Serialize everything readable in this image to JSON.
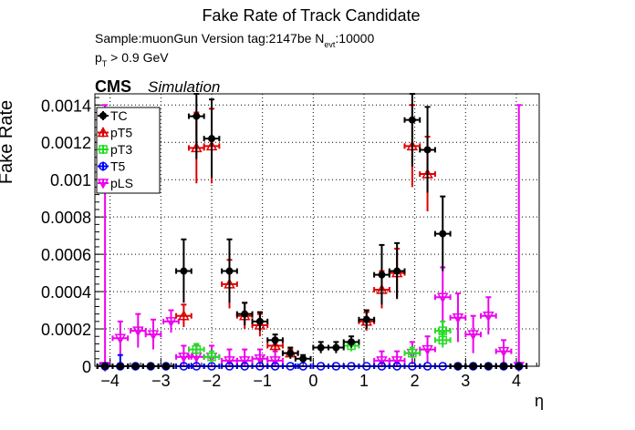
{
  "header": {
    "title": "Fake Rate of Track Candidate",
    "sample_line": "Sample:muonGun   Version tag:2147be  N",
    "sample_sub": "evt",
    "sample_tail": ":10000",
    "pt_prefix": "p",
    "pt_sub": "T",
    "pt_tail": " > 0.9 GeV",
    "cms": "CMS",
    "simulation": "Simulation"
  },
  "chart_data": {
    "type": "scatter",
    "xlabel": "η",
    "ylabel": "Fake Rate",
    "xlim": [
      -4.3,
      4.45
    ],
    "ylim": [
      0,
      0.00146
    ],
    "x_ticks": [
      -4,
      -3,
      -2,
      -1,
      0,
      1,
      2,
      3,
      4
    ],
    "x_tick_labels": [
      "−4",
      "−3",
      "−2",
      "−1",
      "0",
      "1",
      "2",
      "3",
      "4"
    ],
    "y_ticks": [
      0,
      0.0002,
      0.0004,
      0.0006,
      0.0008,
      0.001,
      0.0012,
      0.0014
    ],
    "y_tick_labels": [
      "0",
      "0.0002",
      "0.0004",
      "0.0006",
      "0.0008",
      "0.001",
      "0.0012",
      "0.0014"
    ],
    "grid": true,
    "legend_position": "top-left",
    "series": [
      {
        "name": "TC",
        "color": "#000000",
        "marker": "filled-circle",
        "points": [
          [
            -4.1,
            0.0
          ],
          [
            -3.8,
            0.0
          ],
          [
            -3.5,
            0.0
          ],
          [
            -3.2,
            0.0
          ],
          [
            -2.9,
            0.0
          ],
          [
            -2.55,
            0.00051
          ],
          [
            -2.3,
            0.00134
          ],
          [
            -2.0,
            0.00122
          ],
          [
            -1.65,
            0.00051
          ],
          [
            -1.35,
            0.00028
          ],
          [
            -1.05,
            0.00024
          ],
          [
            -0.75,
            0.00014
          ],
          [
            -0.45,
            7e-05
          ],
          [
            -0.2,
            4e-05
          ],
          [
            0.15,
            0.0001
          ],
          [
            0.45,
            0.0001
          ],
          [
            0.75,
            0.00013
          ],
          [
            1.05,
            0.00025
          ],
          [
            1.35,
            0.00049
          ],
          [
            1.65,
            0.00051
          ],
          [
            1.95,
            0.00132
          ],
          [
            2.25,
            0.00116
          ],
          [
            2.55,
            0.00071
          ],
          [
            2.85,
            0.0
          ],
          [
            3.15,
            0.0
          ],
          [
            3.45,
            0.0
          ],
          [
            3.75,
            0.0
          ],
          [
            4.05,
            0.0
          ]
        ],
        "errors": [
          0,
          0,
          0,
          0,
          0,
          0.00017,
          0.00023,
          0.00021,
          0.00017,
          6e-05,
          5e-05,
          3e-05,
          3e-05,
          2e-05,
          3e-05,
          3e-05,
          3e-05,
          5e-05,
          0.00016,
          0.00015,
          0.00025,
          0.00023,
          0.0002,
          0,
          0,
          0,
          0,
          0
        ]
      },
      {
        "name": "pT5",
        "color": "#e00000",
        "marker": "open-triangle",
        "points": [
          [
            -2.55,
            0.00027
          ],
          [
            -2.3,
            0.00117
          ],
          [
            -2.0,
            0.00118
          ],
          [
            -1.65,
            0.00044
          ],
          [
            -1.35,
            0.00027
          ],
          [
            -1.05,
            0.00022
          ],
          [
            -0.75,
            0.00011
          ],
          [
            -0.45,
            7e-05
          ],
          [
            1.05,
            0.00024
          ],
          [
            1.35,
            0.00041
          ],
          [
            1.65,
            0.0005
          ],
          [
            1.95,
            0.00118
          ],
          [
            2.25,
            0.00103
          ]
        ],
        "errors": [
          6e-05,
          0.00019,
          0.0002,
          0.00013,
          7e-05,
          6e-05,
          3e-05,
          2e-05,
          5e-05,
          0.0001,
          0.00013,
          0.00022,
          0.0002
        ]
      },
      {
        "name": "pT3",
        "color": "#22dd22",
        "marker": "open-square",
        "points": [
          [
            -2.3,
            9e-05
          ],
          [
            -2.0,
            5e-05
          ],
          [
            0.75,
            0.00011
          ],
          [
            1.95,
            7e-05
          ],
          [
            2.55,
            0.00019
          ],
          [
            2.55,
            0.00014
          ]
        ],
        "errors": [
          3e-05,
          3e-05,
          3e-05,
          3e-05,
          5e-05,
          4e-05
        ]
      },
      {
        "name": "T5",
        "color": "#0000ff",
        "marker": "open-circle",
        "points": [
          [
            -4.1,
            0.0
          ],
          [
            -3.8,
            0.0
          ],
          [
            -3.5,
            0.0
          ],
          [
            -3.2,
            0.0
          ],
          [
            -2.9,
            0.0
          ],
          [
            -2.55,
            0.0
          ],
          [
            -2.3,
            0.0
          ],
          [
            -2.0,
            0.0
          ],
          [
            -1.65,
            0.0
          ],
          [
            -1.35,
            0.0
          ],
          [
            -1.05,
            0.0
          ],
          [
            -0.75,
            0.0
          ],
          [
            -0.45,
            0.0
          ],
          [
            -0.2,
            0.0
          ],
          [
            0.15,
            0.0
          ],
          [
            0.45,
            0.0
          ],
          [
            0.75,
            0.0
          ],
          [
            1.05,
            0.0
          ],
          [
            1.35,
            0.0
          ],
          [
            1.65,
            0.0
          ],
          [
            1.95,
            0.0
          ],
          [
            2.25,
            0.0
          ],
          [
            2.55,
            0.0
          ],
          [
            2.85,
            0.0
          ],
          [
            3.15,
            0.0
          ],
          [
            3.45,
            0.0
          ],
          [
            3.75,
            0.0
          ],
          [
            4.05,
            0.0
          ]
        ],
        "errors": [
          0,
          6e-05,
          0,
          0,
          0,
          0,
          0,
          0,
          0,
          0,
          0,
          0,
          0,
          0,
          0,
          0,
          0,
          0,
          0,
          0,
          0,
          0,
          0,
          0,
          0,
          0,
          0,
          0
        ]
      },
      {
        "name": "pLS",
        "color": "#ee00ee",
        "marker": "open-triangle-down",
        "points": [
          [
            -4.1,
            0.0
          ],
          [
            -3.8,
            0.00015
          ],
          [
            -3.45,
            0.00019
          ],
          [
            -3.15,
            0.00017
          ],
          [
            -2.8,
            0.00024
          ],
          [
            -2.55,
            5e-05
          ],
          [
            -2.3,
            5e-05
          ],
          [
            -2.0,
            5e-05
          ],
          [
            -1.65,
            3e-05
          ],
          [
            -1.35,
            3e-05
          ],
          [
            -1.05,
            4e-05
          ],
          [
            -0.75,
            3e-05
          ],
          [
            1.35,
            3e-05
          ],
          [
            1.65,
            3e-05
          ],
          [
            1.95,
            7e-05
          ],
          [
            2.25,
            9e-05
          ],
          [
            2.55,
            0.00037
          ],
          [
            2.85,
            0.00026
          ],
          [
            3.15,
            0.00017
          ],
          [
            3.45,
            0.00027
          ],
          [
            3.75,
            8e-05
          ],
          [
            4.05,
            0.0
          ]
        ],
        "errors": [
          0.0014,
          9e-05,
          9e-05,
          8e-05,
          6e-05,
          6e-05,
          6e-05,
          6e-05,
          6e-05,
          6e-05,
          5e-05,
          5e-05,
          5e-05,
          5e-05,
          6e-05,
          7e-05,
          0.00016,
          0.00013,
          0.0001,
          0.0001,
          6e-05,
          0.0014
        ]
      }
    ]
  }
}
